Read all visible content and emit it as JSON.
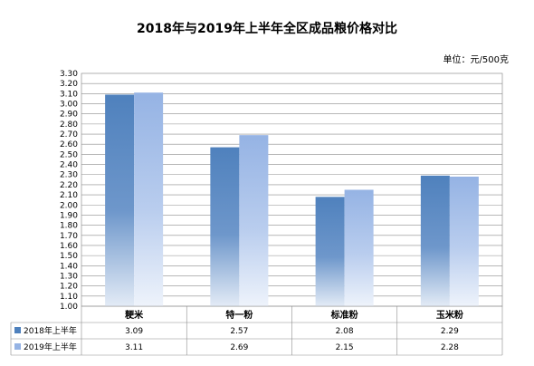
{
  "chart_data": {
    "type": "bar",
    "title": "2018年与2019年上半年全区成品粮价格对比",
    "unit_label": "单位：元/500克",
    "categories": [
      "粳米",
      "特一粉",
      "标准粉",
      "玉米粉"
    ],
    "series": [
      {
        "name": "2018年上半年",
        "values": [
          3.09,
          2.57,
          2.08,
          2.29
        ],
        "color": "#4F81BD"
      },
      {
        "name": "2019年上半年",
        "values": [
          3.11,
          2.69,
          2.15,
          2.28
        ],
        "color": "#95B3E4"
      }
    ],
    "ylim": [
      1.0,
      3.3
    ],
    "y_ticks": [
      "3.30",
      "3.20",
      "3.10",
      "3.00",
      "2.90",
      "2.80",
      "2.70",
      "2.60",
      "2.50",
      "2.40",
      "2.30",
      "2.20",
      "2.10",
      "2.00",
      "1.90",
      "1.80",
      "1.70",
      "1.60",
      "1.50",
      "1.40",
      "1.30",
      "1.20",
      "1.10",
      "1.00"
    ],
    "grid": true,
    "legend_placement": "data-table"
  }
}
